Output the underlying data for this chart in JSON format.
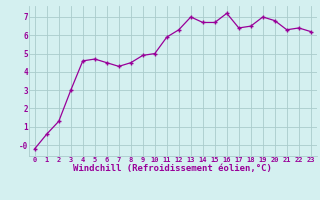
{
  "x": [
    0,
    1,
    2,
    3,
    4,
    5,
    6,
    7,
    8,
    9,
    10,
    11,
    12,
    13,
    14,
    15,
    16,
    17,
    18,
    19,
    20,
    21,
    22,
    23
  ],
  "y": [
    -0.2,
    0.6,
    1.3,
    3.0,
    4.6,
    4.7,
    4.5,
    4.3,
    4.5,
    4.9,
    5.0,
    5.9,
    6.3,
    7.0,
    6.7,
    6.7,
    7.2,
    6.4,
    6.5,
    7.0,
    6.8,
    6.3,
    6.4,
    6.2
  ],
  "line_color": "#990099",
  "marker": "+",
  "marker_size": 3,
  "line_width": 0.9,
  "xlabel": "Windchill (Refroidissement éolien,°C)",
  "xlabel_fontsize": 6.5,
  "bg_color": "#d4f0f0",
  "grid_color": "#aacccc",
  "tick_color": "#990099",
  "xlim": [
    -0.5,
    23.5
  ],
  "ylim": [
    -0.6,
    7.6
  ],
  "yticks": [
    0,
    1,
    2,
    3,
    4,
    5,
    6,
    7
  ],
  "ytick_labels": [
    "-0",
    "1",
    "2",
    "3",
    "4",
    "5",
    "6",
    "7"
  ],
  "xticks": [
    0,
    1,
    2,
    3,
    4,
    5,
    6,
    7,
    8,
    9,
    10,
    11,
    12,
    13,
    14,
    15,
    16,
    17,
    18,
    19,
    20,
    21,
    22,
    23
  ]
}
